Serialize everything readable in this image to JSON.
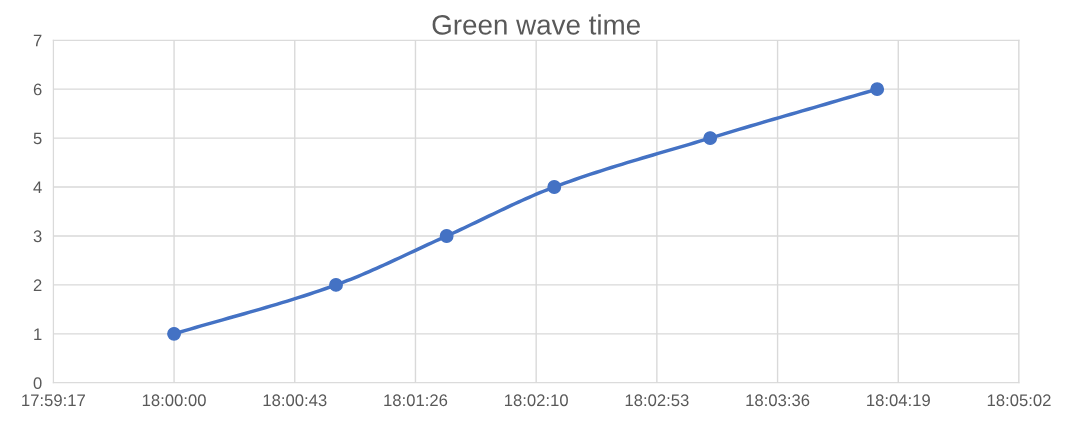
{
  "chart_data": {
    "type": "line",
    "title": "Green wave time",
    "x": [
      18.0,
      18.0161,
      18.0271,
      18.0378,
      18.0533,
      18.0699
    ],
    "series": [
      {
        "color": "#4472c4",
        "values": [
          1,
          2,
          3,
          4,
          5,
          6
        ]
      }
    ],
    "xlim": [
      17.988,
      18.084
    ],
    "xticks": [
      {
        "value": 17.988,
        "label": "17:59:17"
      },
      {
        "value": 18.0,
        "label": "18:00:00"
      },
      {
        "value": 18.012,
        "label": "18:00:43"
      },
      {
        "value": 18.024,
        "label": "18:01:26"
      },
      {
        "value": 18.036,
        "label": "18:02:10"
      },
      {
        "value": 18.048,
        "label": "18:02:53"
      },
      {
        "value": 18.06,
        "label": "18:03:36"
      },
      {
        "value": 18.072,
        "label": "18:04:19"
      },
      {
        "value": 18.084,
        "label": "18:05:02"
      }
    ],
    "ylim": [
      0,
      7
    ],
    "yticks": [
      0,
      1,
      2,
      3,
      4,
      5,
      6,
      7
    ],
    "grid": true,
    "marker": "circle",
    "line_style": "solid"
  }
}
